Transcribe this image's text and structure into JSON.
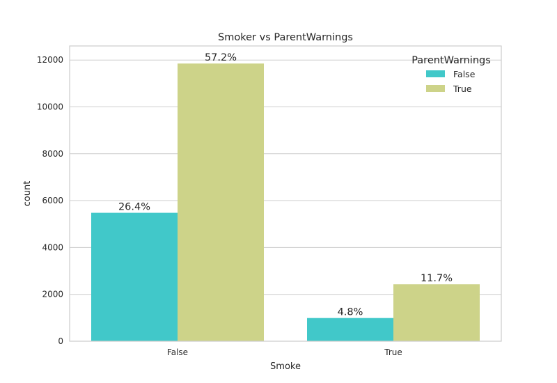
{
  "chart_data": {
    "type": "bar",
    "title": "Smoker vs ParentWarnings",
    "xlabel": "Smoke",
    "ylabel": "count",
    "categories": [
      "False",
      "True"
    ],
    "ylim": [
      0,
      12600
    ],
    "yticks": [
      0,
      2000,
      4000,
      6000,
      8000,
      10000,
      12000
    ],
    "grid": true,
    "legend": {
      "title": "ParentWarnings",
      "placement": "top-right"
    },
    "series": [
      {
        "name": "False",
        "color": "#41c8c9",
        "values": [
          5480,
          990
        ],
        "labels": [
          "26.4%",
          "4.8%"
        ]
      },
      {
        "name": "True",
        "color": "#cdd389",
        "values": [
          11850,
          2430
        ],
        "labels": [
          "57.2%",
          "11.7%"
        ]
      }
    ]
  }
}
